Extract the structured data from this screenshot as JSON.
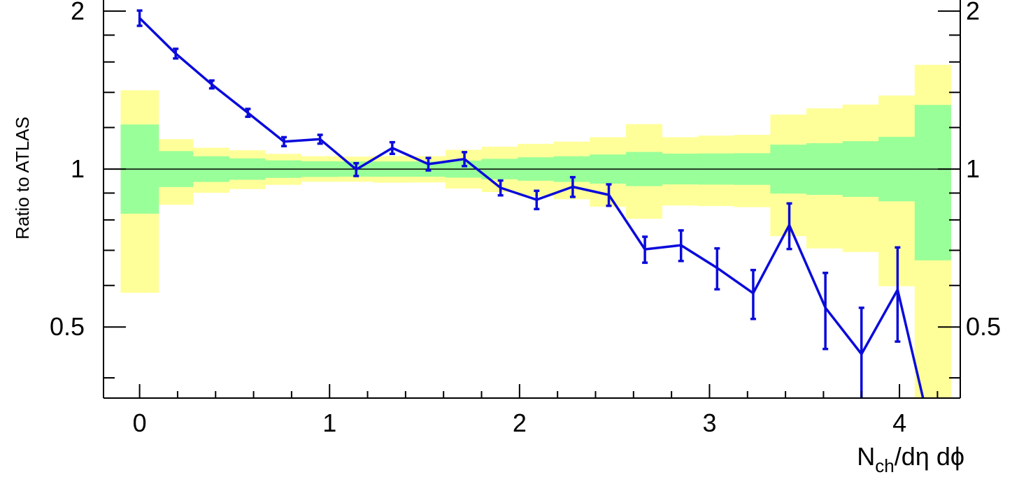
{
  "chart_data": {
    "type": "line",
    "title": "",
    "xlabel_main": "N",
    "xlabel_sub": "ch",
    "xlabel_rest": "/dη dϕ",
    "ylabel": "Ratio to ATLAS",
    "xlim": [
      -0.19,
      4.32
    ],
    "ylim": [
      0.366,
      2.1
    ],
    "y_scale": "log",
    "x_ticks": [
      0,
      1,
      2,
      3,
      4
    ],
    "x_tick_labels": [
      "0",
      "1",
      "2",
      "3",
      "4"
    ],
    "y_ticks": [
      0.5,
      1,
      2
    ],
    "y_tick_labels": [
      "0.5",
      "1",
      "2"
    ],
    "grid": false,
    "reference_line": 1,
    "colors": {
      "series": "#0a0adb",
      "band_inner": "#99ff99",
      "band_outer": "#ffff99",
      "reference": "#000000"
    },
    "band_edges": [
      -0.1,
      0.1,
      0.28,
      0.47,
      0.66,
      0.85,
      1.04,
      1.23,
      1.42,
      1.61,
      1.8,
      1.99,
      2.18,
      2.37,
      2.56,
      2.75,
      2.94,
      3.13,
      3.32,
      3.51,
      3.7,
      3.89,
      4.08,
      4.27
    ],
    "band_inner": [
      [
        0.822,
        1.216
      ],
      [
        0.924,
        1.082
      ],
      [
        0.945,
        1.058
      ],
      [
        0.954,
        1.048
      ],
      [
        0.962,
        1.039
      ],
      [
        0.966,
        1.035
      ],
      [
        0.967,
        1.034
      ],
      [
        0.967,
        1.034
      ],
      [
        0.967,
        1.034
      ],
      [
        0.963,
        1.038
      ],
      [
        0.956,
        1.046
      ],
      [
        0.95,
        1.053
      ],
      [
        0.945,
        1.058
      ],
      [
        0.938,
        1.066
      ],
      [
        0.928,
        1.078
      ],
      [
        0.935,
        1.07
      ],
      [
        0.934,
        1.071
      ],
      [
        0.933,
        1.072
      ],
      [
        0.898,
        1.113
      ],
      [
        0.893,
        1.12
      ],
      [
        0.885,
        1.13
      ],
      [
        0.868,
        1.152
      ],
      [
        0.67,
        1.325
      ]
    ],
    "band_outer": [
      [
        0.581,
        1.413
      ],
      [
        0.855,
        1.14
      ],
      [
        0.901,
        1.098
      ],
      [
        0.916,
        1.086
      ],
      [
        0.933,
        1.069
      ],
      [
        0.946,
        1.058
      ],
      [
        0.946,
        1.056
      ],
      [
        0.942,
        1.059
      ],
      [
        0.943,
        1.058
      ],
      [
        0.918,
        1.088
      ],
      [
        0.904,
        1.103
      ],
      [
        0.888,
        1.117
      ],
      [
        0.876,
        1.128
      ],
      [
        0.848,
        1.15
      ],
      [
        0.804,
        1.218
      ],
      [
        0.852,
        1.15
      ],
      [
        0.85,
        1.158
      ],
      [
        0.846,
        1.162
      ],
      [
        0.745,
        1.27
      ],
      [
        0.706,
        1.305
      ],
      [
        0.695,
        1.327
      ],
      [
        0.598,
        1.381
      ],
      [
        0.3,
        1.58
      ]
    ],
    "series": [
      {
        "x": [
          0.0,
          0.19,
          0.38,
          0.57,
          0.76,
          0.95,
          1.14,
          1.33,
          1.52,
          1.71,
          1.9,
          2.09,
          2.28,
          2.47,
          2.66,
          2.85,
          3.04,
          3.23,
          3.42,
          3.61,
          3.8,
          3.99,
          4.18
        ],
        "y": [
          1.94,
          1.66,
          1.45,
          1.28,
          1.128,
          1.14,
          0.998,
          1.097,
          1.022,
          1.045,
          0.921,
          0.874,
          0.925,
          0.893,
          0.703,
          0.716,
          0.648,
          0.58,
          0.782,
          0.544,
          0.444,
          0.589,
          0.3
        ],
        "err": [
          0.065,
          0.035,
          0.025,
          0.022,
          0.022,
          0.022,
          0.028,
          0.028,
          0.028,
          0.032,
          0.03,
          0.035,
          0.04,
          0.042,
          0.04,
          0.048,
          0.058,
          0.062,
          0.078,
          0.09,
          0.1,
          0.12,
          0
        ]
      }
    ]
  }
}
